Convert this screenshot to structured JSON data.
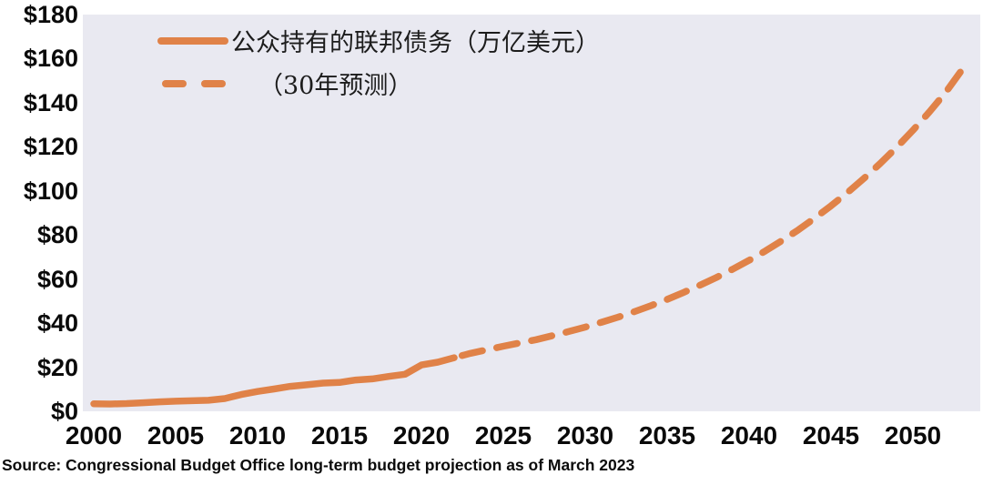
{
  "chart_data": {
    "type": "line",
    "title": "",
    "xlabel": "",
    "ylabel": "",
    "grid": false,
    "legend_position": "top-left",
    "plot_background": "#E9E9F1",
    "line_color": "#E08248",
    "xlim": [
      1999.333,
      2054.111
    ],
    "ylim": [
      0,
      180
    ],
    "x_ticks": [
      {
        "value": 2000,
        "label": "2000"
      },
      {
        "value": 2005,
        "label": "2005"
      },
      {
        "value": 2010,
        "label": "2010"
      },
      {
        "value": 2015,
        "label": "2015"
      },
      {
        "value": 2020,
        "label": "2020"
      },
      {
        "value": 2025,
        "label": "2025"
      },
      {
        "value": 2030,
        "label": "2030"
      },
      {
        "value": 2035,
        "label": "2035"
      },
      {
        "value": 2040,
        "label": "2040"
      },
      {
        "value": 2045,
        "label": "2045"
      },
      {
        "value": 2050,
        "label": "2050"
      }
    ],
    "y_ticks": [
      {
        "value": 0,
        "label": "$0"
      },
      {
        "value": 20,
        "label": "$20"
      },
      {
        "value": 40,
        "label": "$40"
      },
      {
        "value": 60,
        "label": "$60"
      },
      {
        "value": 80,
        "label": "$80"
      },
      {
        "value": 100,
        "label": "$100"
      },
      {
        "value": 120,
        "label": "$120"
      },
      {
        "value": 140,
        "label": "$140"
      },
      {
        "value": 160,
        "label": "$160"
      },
      {
        "value": 180,
        "label": "$180"
      }
    ],
    "series": [
      {
        "name": "公众持有的联邦债务（万亿美元）",
        "style": "solid",
        "x": [
          2000,
          2001,
          2002,
          2003,
          2004,
          2005,
          2006,
          2007,
          2008,
          2009,
          2010,
          2011,
          2012,
          2013,
          2014,
          2015,
          2016,
          2017,
          2018,
          2019,
          2020,
          2021,
          2022
        ],
        "values": [
          3.4,
          3.3,
          3.5,
          3.9,
          4.3,
          4.6,
          4.8,
          5.0,
          5.8,
          7.6,
          9.0,
          10.1,
          11.3,
          12.0,
          12.8,
          13.1,
          14.2,
          14.7,
          15.8,
          16.8,
          21.0,
          22.3,
          24.3
        ]
      },
      {
        "name": "（30年预测）",
        "style": "dashed",
        "x": [
          2022,
          2023,
          2024,
          2025,
          2026,
          2027,
          2028,
          2029,
          2030,
          2031,
          2032,
          2033,
          2034,
          2035,
          2036,
          2037,
          2038,
          2039,
          2040,
          2041,
          2042,
          2043,
          2044,
          2045,
          2046,
          2047,
          2048,
          2049,
          2050,
          2051,
          2052,
          2053
        ],
        "values": [
          24.3,
          26.3,
          27.9,
          29.5,
          31.0,
          32.5,
          34.3,
          36.2,
          38.2,
          40.4,
          42.7,
          45.2,
          47.9,
          50.8,
          53.9,
          57.2,
          60.7,
          64.5,
          68.5,
          72.8,
          77.4,
          82.3,
          87.6,
          93.2,
          99.2,
          105.6,
          112.4,
          119.7,
          127.5,
          135.8,
          144.7,
          155.0
        ]
      }
    ],
    "legend": {
      "items": [
        {
          "label": "公众持有的联邦债务（万亿美元）",
          "swatch": "solid"
        },
        {
          "label": "（30年预测）",
          "swatch": "dashed"
        }
      ]
    }
  },
  "source": "Source: Congressional Budget Office long-term budget projection as of March 2023"
}
